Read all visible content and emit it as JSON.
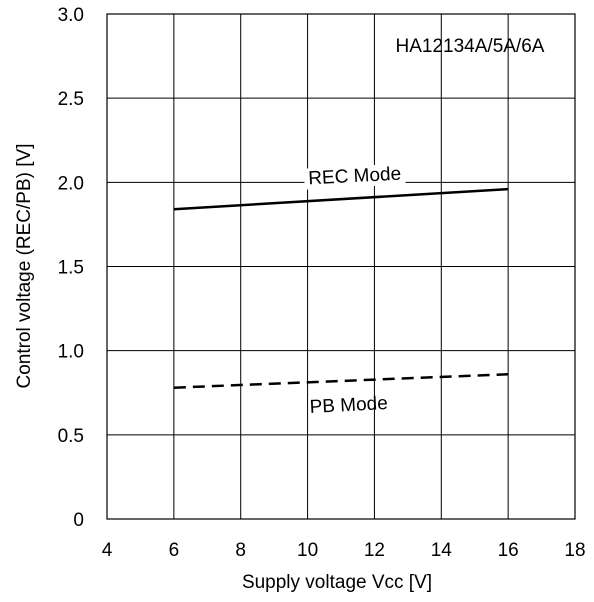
{
  "chart_data": {
    "type": "line",
    "xlabel": "Supply voltage Vcc [V]",
    "ylabel": "Control voltage (REC/PB)  [V]",
    "xlim": [
      4,
      18
    ],
    "ylim": [
      0,
      3.0
    ],
    "x_ticks": [
      "4",
      "6",
      "8",
      "10",
      "12",
      "14",
      "16",
      "18"
    ],
    "y_ticks": [
      "0",
      "0.5",
      "1.0",
      "1.5",
      "2.0",
      "2.5",
      "3.0"
    ],
    "grid": true,
    "annotation": "HA12134A/5A/6A",
    "series": [
      {
        "name": "REC Mode",
        "style": "solid",
        "color": "#000000",
        "x": [
          6,
          16
        ],
        "y": [
          1.84,
          1.96
        ]
      },
      {
        "name": "PB Mode",
        "style": "dashed",
        "color": "#000000",
        "x": [
          6,
          16
        ],
        "y": [
          0.78,
          0.86
        ]
      }
    ]
  }
}
